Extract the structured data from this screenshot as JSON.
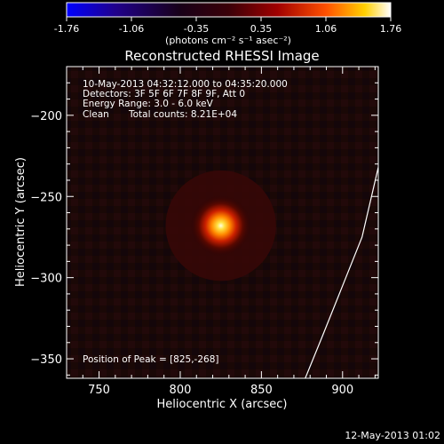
{
  "colorbar": {
    "ticks": [
      "-1.76",
      "-1.06",
      "-0.35",
      "0.35",
      "1.06",
      "1.76"
    ],
    "units": "(photons cm⁻² s⁻¹ asec⁻²)",
    "colors": [
      "#0000ff",
      "#2a0080",
      "#000000",
      "#800000",
      "#ff4000",
      "#ffc000",
      "#ffffff"
    ]
  },
  "footer": {
    "date": "12-May-2013 01:02"
  },
  "chart_data": {
    "type": "heatmap",
    "title": "Reconstructed RHESSI Image",
    "xlabel": "Heliocentric X (arcsec)",
    "ylabel": "Heliocentric Y (arcsec)",
    "xlim": [
      730,
      922
    ],
    "ylim": [
      -362,
      -170
    ],
    "xticks": [
      750,
      800,
      850,
      900
    ],
    "yticks": [
      -200,
      -250,
      -300,
      -350
    ],
    "peak": {
      "x": 825,
      "y": -268,
      "value": 1.76,
      "sigma_arcsec": 9
    },
    "value_range": [
      -1.76,
      1.76
    ],
    "limb": [
      [
        877,
        -362
      ],
      [
        888,
        -335
      ],
      [
        900,
        -305
      ],
      [
        912,
        -275
      ],
      [
        922,
        -232
      ]
    ],
    "annotations": {
      "time": "10-May-2013 04:32:12.000 to 04:35:20.000",
      "detectors": "Detectors: 3F 5F 6F 7F 8F 9F, Att 0",
      "energy": "Energy Range: 3.0 - 6.0 keV",
      "clean_label": "Clean",
      "counts": "Total counts: 8.21E+04",
      "peak_text": "Position of Peak = [825,-268]"
    }
  }
}
